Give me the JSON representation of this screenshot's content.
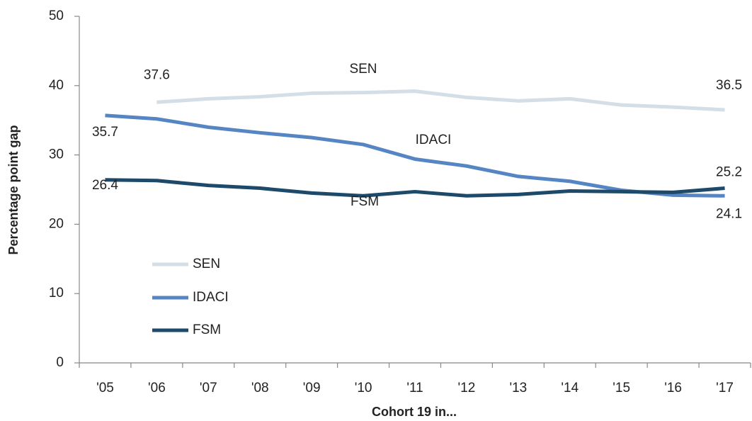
{
  "chart_data": {
    "type": "line",
    "x_label": "Cohort 19 in...",
    "y_label": "Percentage point gap",
    "categories": [
      "'05",
      "'06",
      "'07",
      "'08",
      "'09",
      "'10",
      "'11",
      "'12",
      "'13",
      "'14",
      "'15",
      "'16",
      "'17"
    ],
    "series": [
      {
        "name": "SEN",
        "color": "#d3dee6",
        "values": [
          null,
          37.6,
          38.1,
          38.4,
          38.9,
          39.0,
          39.2,
          38.3,
          37.8,
          38.1,
          37.2,
          36.9,
          36.5
        ]
      },
      {
        "name": "IDACI",
        "color": "#5585c3",
        "values": [
          35.7,
          35.2,
          34.0,
          33.2,
          32.5,
          31.5,
          29.4,
          28.4,
          26.9,
          26.2,
          24.9,
          24.2,
          24.1
        ]
      },
      {
        "name": "FSM",
        "color": "#1d4a6b",
        "values": [
          26.4,
          26.3,
          25.6,
          25.2,
          24.5,
          24.1,
          24.7,
          24.1,
          24.3,
          24.8,
          24.7,
          24.6,
          25.2
        ]
      }
    ],
    "ylim": [
      0,
      50
    ],
    "yticks": [
      0,
      10,
      20,
      30,
      40,
      50
    ],
    "grid": false
  }
}
